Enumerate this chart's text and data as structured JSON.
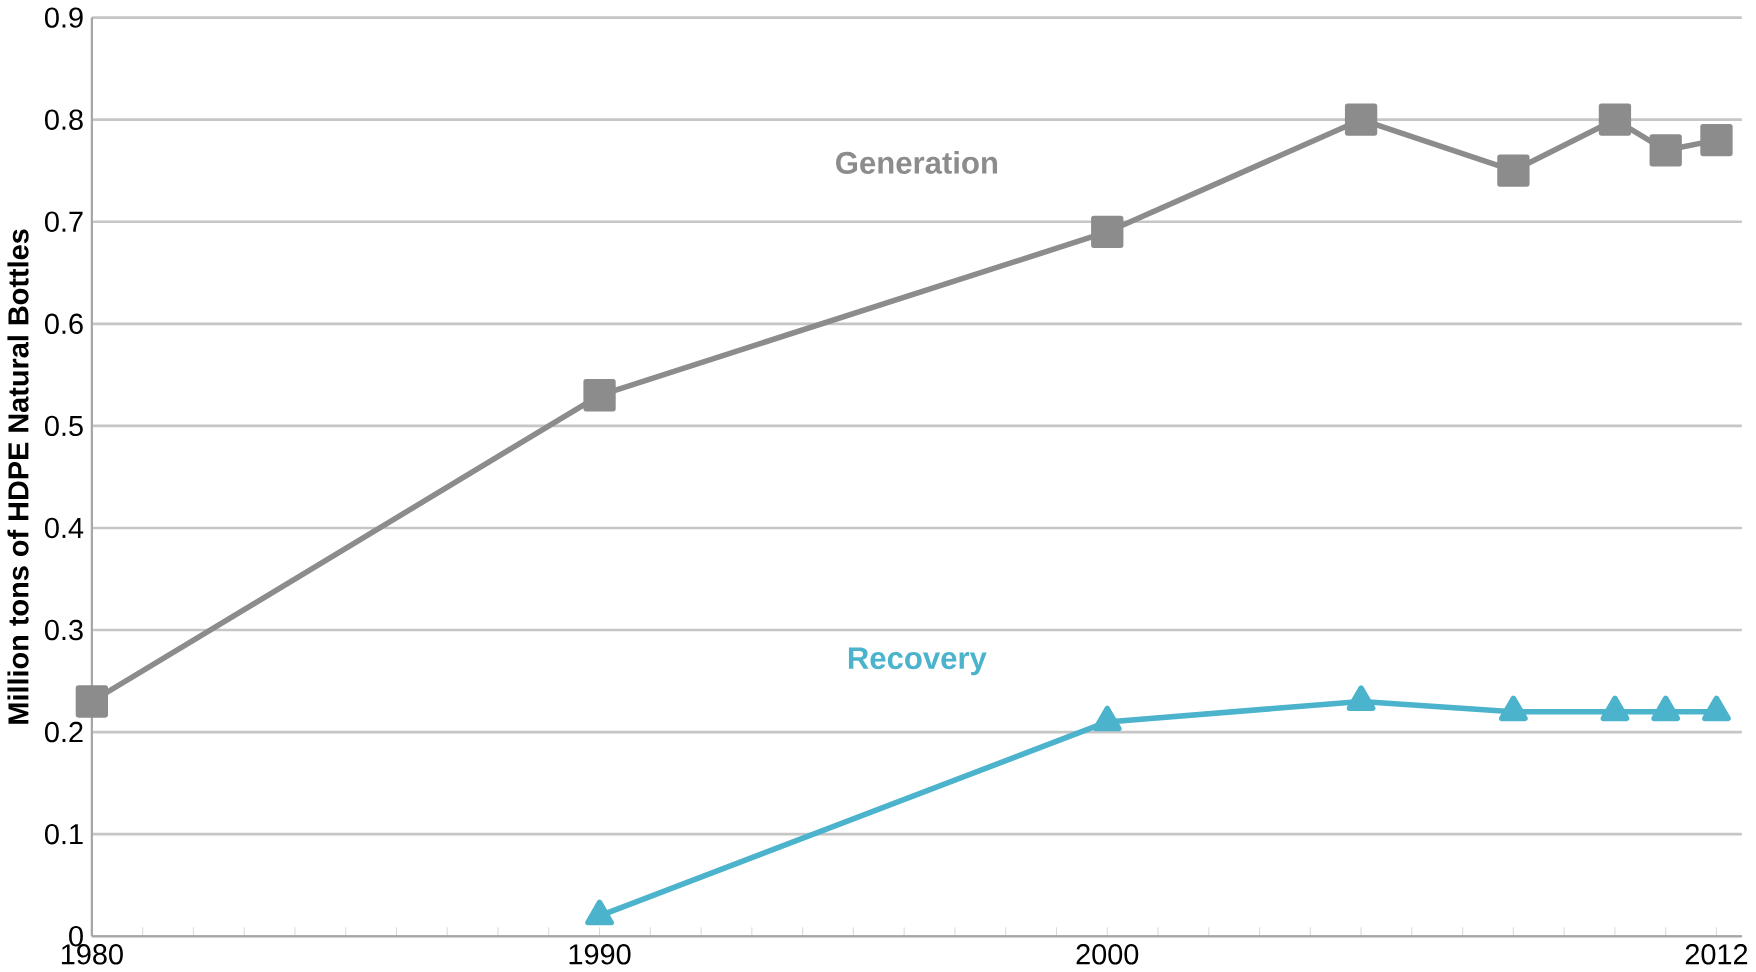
{
  "chart_data": {
    "type": "line",
    "ylabel": "Million tons of HDPE Natural Bottles",
    "xlim": [
      1980,
      2012.5
    ],
    "ylim": [
      0,
      0.9
    ],
    "xticks": [
      1980,
      {
        "value": 1981,
        "label": null
      },
      {
        "value": 1982,
        "label": null
      },
      {
        "value": 1983,
        "label": null
      },
      {
        "value": 1984,
        "label": null
      },
      {
        "value": 1985,
        "label": null
      },
      {
        "value": 1986,
        "label": null
      },
      {
        "value": 1987,
        "label": null
      },
      {
        "value": 1988,
        "label": null
      },
      {
        "value": 1989,
        "label": null
      },
      1990,
      {
        "value": 1991,
        "label": null
      },
      {
        "value": 1992,
        "label": null
      },
      {
        "value": 1993,
        "label": null
      },
      {
        "value": 1994,
        "label": null
      },
      {
        "value": 1995,
        "label": null
      },
      {
        "value": 1996,
        "label": null
      },
      {
        "value": 1997,
        "label": null
      },
      {
        "value": 1998,
        "label": null
      },
      {
        "value": 1999,
        "label": null
      },
      2000,
      {
        "value": 2001,
        "label": null
      },
      {
        "value": 2002,
        "label": null
      },
      {
        "value": 2003,
        "label": null
      },
      {
        "value": 2004,
        "label": null
      },
      {
        "value": 2005,
        "label": null
      },
      {
        "value": 2006,
        "label": null
      },
      {
        "value": 2007,
        "label": null
      },
      {
        "value": 2008,
        "label": null
      },
      {
        "value": 2009,
        "label": null
      },
      {
        "value": 2010,
        "label": null
      },
      {
        "value": 2011,
        "label": null
      },
      2012
    ],
    "yticks": [
      0,
      0.1,
      0.2,
      0.3,
      0.4,
      0.5,
      0.6,
      0.7,
      0.8,
      0.9
    ],
    "grid": "y",
    "legend": false,
    "line_style": "solid",
    "series": [
      {
        "name": "Generation",
        "color": "#8c8c8c",
        "marker": "square",
        "x": [
          1980,
          1990,
          2000,
          2005,
          2008,
          2010,
          2011,
          2012
        ],
        "values": [
          0.23,
          0.53,
          0.69,
          0.8,
          0.75,
          0.8,
          0.77,
          0.78
        ]
      },
      {
        "name": "Recovery",
        "color": "#4bb3cc",
        "marker": "triangle",
        "x": [
          1990,
          2000,
          2005,
          2008,
          2010,
          2011,
          2012
        ],
        "values": [
          0.02,
          0.21,
          0.23,
          0.22,
          0.22,
          0.22,
          0.22
        ]
      }
    ]
  }
}
